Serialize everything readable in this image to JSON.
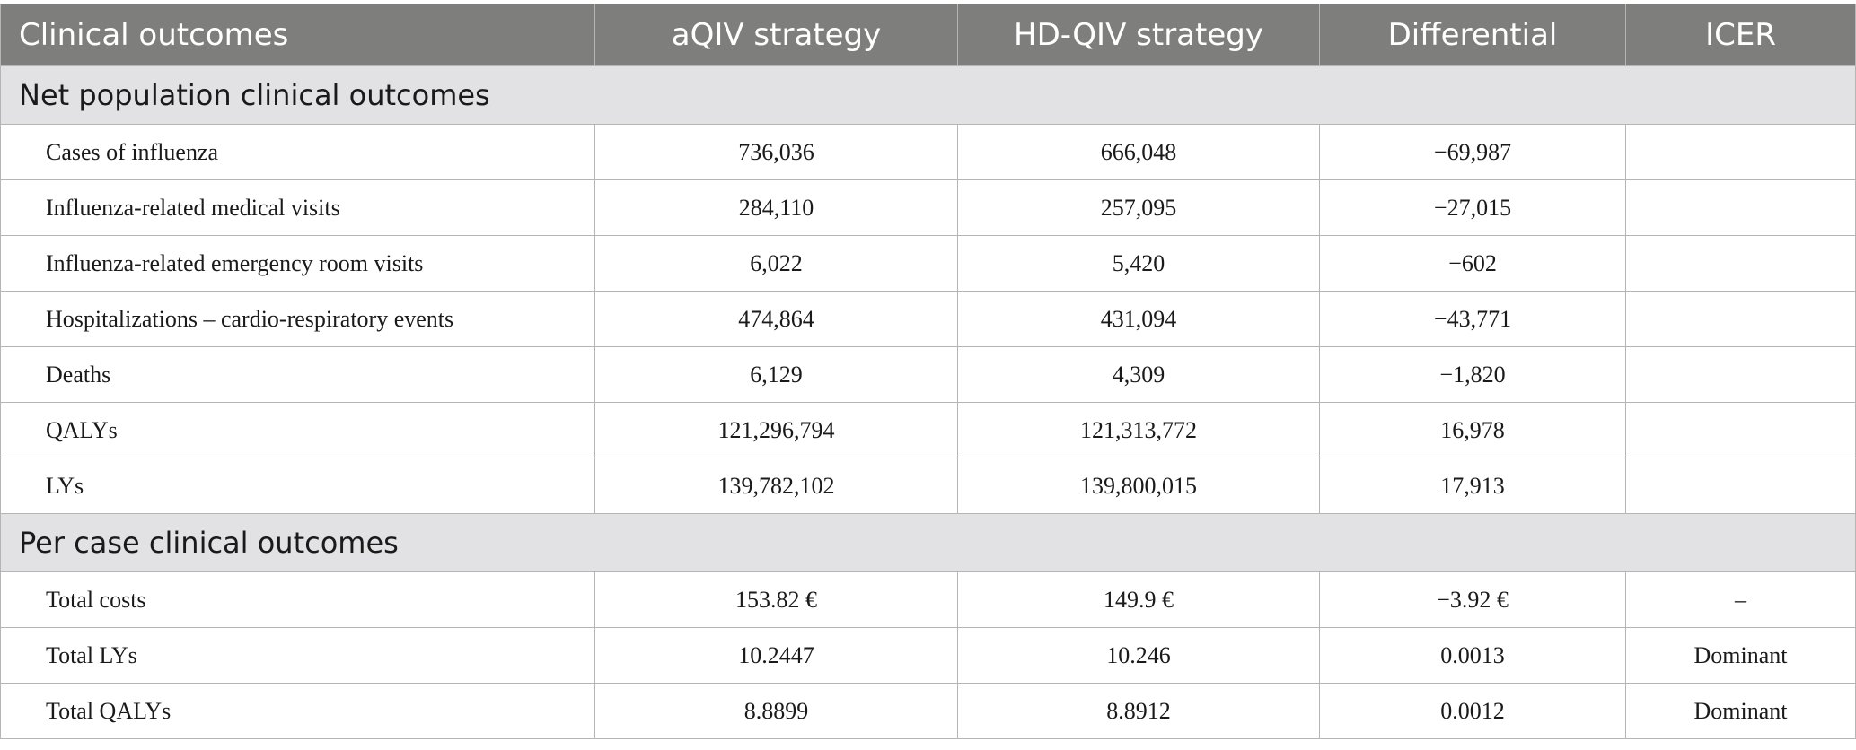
{
  "header": {
    "col1": "Clinical outcomes",
    "col2": "aQIV strategy",
    "col3": "HD-QIV strategy",
    "col4": "Differential",
    "col5": "ICER"
  },
  "section1": {
    "title": "Net population clinical outcomes",
    "rows": [
      {
        "label": "Cases of influenza",
        "aqiv": "736,036",
        "hdqiv": "666,048",
        "diff": "−69,987",
        "icer": ""
      },
      {
        "label": "Influenza-related medical visits",
        "aqiv": "284,110",
        "hdqiv": "257,095",
        "diff": "−27,015",
        "icer": ""
      },
      {
        "label": "Influenza-related emergency room visits",
        "aqiv": "6,022",
        "hdqiv": "5,420",
        "diff": "−602",
        "icer": ""
      },
      {
        "label": "Hospitalizations – cardio-respiratory events",
        "aqiv": "474,864",
        "hdqiv": "431,094",
        "diff": "−43,771",
        "icer": ""
      },
      {
        "label": "Deaths",
        "aqiv": "6,129",
        "hdqiv": "4,309",
        "diff": "−1,820",
        "icer": ""
      },
      {
        "label": "QALYs",
        "aqiv": "121,296,794",
        "hdqiv": "121,313,772",
        "diff": "16,978",
        "icer": ""
      },
      {
        "label": "LYs",
        "aqiv": "139,782,102",
        "hdqiv": "139,800,015",
        "diff": "17,913",
        "icer": ""
      }
    ]
  },
  "section2": {
    "title": "Per case clinical outcomes",
    "rows": [
      {
        "label": "Total costs",
        "aqiv": "153.82 €",
        "hdqiv": "149.9 €",
        "diff": "−3.92 €",
        "icer": "–"
      },
      {
        "label": "Total LYs",
        "aqiv": "10.2447",
        "hdqiv": "10.246",
        "diff": "0.0013",
        "icer": "Dominant"
      },
      {
        "label": "Total QALYs",
        "aqiv": "8.8899",
        "hdqiv": "8.8912",
        "diff": "0.0012",
        "icer": "Dominant"
      }
    ]
  }
}
